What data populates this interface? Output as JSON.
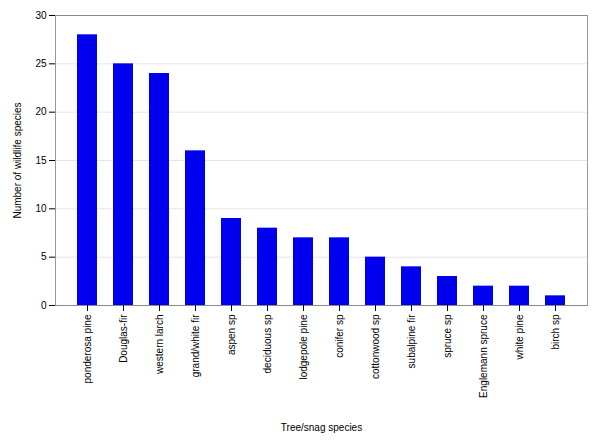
{
  "chart_data": {
    "type": "bar",
    "categories": [
      "ponderosa pine",
      "Douglas-fir",
      "western larch",
      "grand/white fir",
      "aspen sp",
      "deciduous sp",
      "lodgepole pine",
      "conifer sp",
      "cottonwood sp",
      "subalpine fir",
      "spruce sp",
      "Englemann spruce",
      "white pine",
      "birch sp"
    ],
    "values": [
      28,
      25,
      24,
      16,
      9,
      8,
      7,
      7,
      5,
      4,
      3,
      2,
      2,
      1
    ],
    "color": "#0000EE",
    "xlabel": "Tree/snag species",
    "ylabel": "Number of wildlife species",
    "ylim": [
      0,
      30
    ],
    "yticks": [
      0,
      5,
      10,
      15,
      20,
      25,
      30
    ],
    "grid": true
  }
}
